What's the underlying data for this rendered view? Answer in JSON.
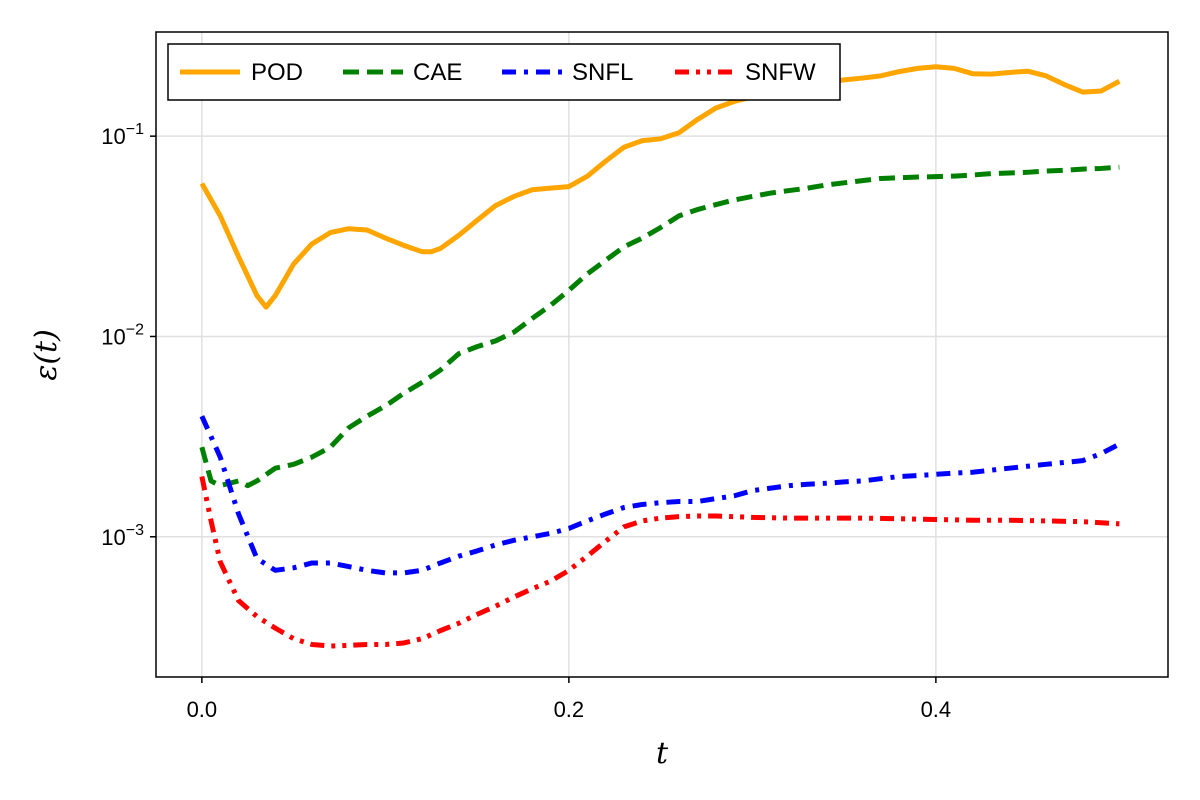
{
  "chart_data": {
    "type": "line",
    "xlabel": "t",
    "ylabel": "ε(t)",
    "yscale": "log",
    "xlim": [
      -0.025,
      0.5265
    ],
    "ylim_log10": [
      -3.7,
      -0.48
    ],
    "xticks": [
      {
        "value": 0.0,
        "label": "0.0"
      },
      {
        "value": 0.2,
        "label": "0.2"
      },
      {
        "value": 0.4,
        "label": "0.4"
      }
    ],
    "yticks": [
      {
        "value": 0.001,
        "base": "10",
        "exp": "−3"
      },
      {
        "value": 0.01,
        "base": "10",
        "exp": "−2"
      },
      {
        "value": 0.1,
        "base": "10",
        "exp": "−1"
      }
    ],
    "grid": true,
    "legend_position": "top-left",
    "series": [
      {
        "name": "POD",
        "color": "#ffa500",
        "dash": "solid",
        "x": [
          0,
          0.01,
          0.02,
          0.03,
          0.035,
          0.04,
          0.05,
          0.06,
          0.07,
          0.08,
          0.09,
          0.1,
          0.11,
          0.12,
          0.125,
          0.13,
          0.14,
          0.15,
          0.16,
          0.17,
          0.18,
          0.19,
          0.2,
          0.21,
          0.22,
          0.23,
          0.24,
          0.25,
          0.26,
          0.27,
          0.28,
          0.29,
          0.3,
          0.31,
          0.32,
          0.33,
          0.34,
          0.35,
          0.36,
          0.37,
          0.38,
          0.39,
          0.4,
          0.41,
          0.42,
          0.43,
          0.44,
          0.45,
          0.46,
          0.47,
          0.48,
          0.49,
          0.5
        ],
        "y": [
          0.058,
          0.04,
          0.025,
          0.016,
          0.014,
          0.016,
          0.023,
          0.029,
          0.033,
          0.0345,
          0.034,
          0.031,
          0.0285,
          0.0265,
          0.0265,
          0.0275,
          0.032,
          0.038,
          0.045,
          0.05,
          0.054,
          0.055,
          0.056,
          0.063,
          0.075,
          0.088,
          0.095,
          0.097,
          0.104,
          0.121,
          0.138,
          0.149,
          0.157,
          0.163,
          0.172,
          0.18,
          0.186,
          0.191,
          0.195,
          0.2,
          0.21,
          0.218,
          0.222,
          0.218,
          0.205,
          0.204,
          0.208,
          0.211,
          0.2,
          0.181,
          0.166,
          0.168,
          0.188
        ]
      },
      {
        "name": "CAE",
        "color": "#008000",
        "dash": "dashed",
        "x": [
          0,
          0.005,
          0.01,
          0.02,
          0.025,
          0.03,
          0.04,
          0.05,
          0.06,
          0.07,
          0.08,
          0.09,
          0.1,
          0.11,
          0.12,
          0.13,
          0.14,
          0.15,
          0.16,
          0.17,
          0.18,
          0.19,
          0.2,
          0.21,
          0.22,
          0.23,
          0.24,
          0.25,
          0.26,
          0.27,
          0.28,
          0.29,
          0.3,
          0.31,
          0.32,
          0.33,
          0.34,
          0.35,
          0.36,
          0.37,
          0.38,
          0.39,
          0.4,
          0.41,
          0.42,
          0.43,
          0.44,
          0.45,
          0.46,
          0.47,
          0.48,
          0.49,
          0.5
        ],
        "y": [
          0.0028,
          0.0019,
          0.0018,
          0.0019,
          0.0018,
          0.0019,
          0.0022,
          0.0023,
          0.0025,
          0.0028,
          0.0035,
          0.004,
          0.0045,
          0.0052,
          0.0059,
          0.0068,
          0.0082,
          0.0089,
          0.0095,
          0.0105,
          0.0123,
          0.0143,
          0.017,
          0.0205,
          0.024,
          0.028,
          0.031,
          0.035,
          0.04,
          0.043,
          0.0455,
          0.048,
          0.05,
          0.052,
          0.0535,
          0.055,
          0.057,
          0.0585,
          0.06,
          0.0615,
          0.062,
          0.0625,
          0.0628,
          0.0632,
          0.064,
          0.065,
          0.0655,
          0.066,
          0.067,
          0.0675,
          0.0685,
          0.069,
          0.07
        ]
      },
      {
        "name": "SNFL",
        "color": "#0000ff",
        "dash": "dashdot",
        "x": [
          0,
          0.01,
          0.02,
          0.03,
          0.04,
          0.05,
          0.06,
          0.07,
          0.08,
          0.09,
          0.1,
          0.11,
          0.12,
          0.13,
          0.14,
          0.15,
          0.16,
          0.17,
          0.18,
          0.19,
          0.2,
          0.21,
          0.22,
          0.23,
          0.24,
          0.25,
          0.26,
          0.27,
          0.28,
          0.29,
          0.3,
          0.31,
          0.32,
          0.33,
          0.34,
          0.35,
          0.36,
          0.37,
          0.38,
          0.39,
          0.4,
          0.41,
          0.42,
          0.43,
          0.44,
          0.45,
          0.46,
          0.47,
          0.48,
          0.49,
          0.5
        ],
        "y": [
          0.004,
          0.0025,
          0.0013,
          0.00078,
          0.00068,
          0.0007,
          0.00074,
          0.00074,
          0.00071,
          0.00068,
          0.00066,
          0.00066,
          0.00068,
          0.00074,
          0.0008,
          0.00085,
          0.00091,
          0.00096,
          0.001,
          0.00104,
          0.0011,
          0.0012,
          0.0013,
          0.0014,
          0.00145,
          0.00148,
          0.0015,
          0.0015,
          0.00155,
          0.0016,
          0.0017,
          0.00175,
          0.0018,
          0.00183,
          0.00185,
          0.00188,
          0.0019,
          0.00195,
          0.002,
          0.00202,
          0.00205,
          0.00208,
          0.0021,
          0.00215,
          0.0022,
          0.00225,
          0.0023,
          0.00235,
          0.0024,
          0.0026,
          0.0029
        ]
      },
      {
        "name": "SNFW",
        "color": "#ff0000",
        "dash": "dashdotdot",
        "x": [
          0,
          0.005,
          0.01,
          0.02,
          0.03,
          0.04,
          0.05,
          0.06,
          0.07,
          0.08,
          0.09,
          0.1,
          0.11,
          0.12,
          0.13,
          0.14,
          0.15,
          0.16,
          0.17,
          0.18,
          0.19,
          0.2,
          0.21,
          0.22,
          0.23,
          0.24,
          0.25,
          0.26,
          0.27,
          0.28,
          0.29,
          0.3,
          0.32,
          0.34,
          0.36,
          0.38,
          0.4,
          0.42,
          0.44,
          0.46,
          0.48,
          0.5
        ],
        "y": [
          0.002,
          0.0012,
          0.00075,
          0.00048,
          0.0004,
          0.00035,
          0.00031,
          0.00029,
          0.000285,
          0.000287,
          0.00029,
          0.00029,
          0.000295,
          0.00031,
          0.00034,
          0.00037,
          0.00041,
          0.00045,
          0.0005,
          0.00055,
          0.0006,
          0.00068,
          0.0008,
          0.00095,
          0.00112,
          0.0012,
          0.00124,
          0.00126,
          0.00127,
          0.00127,
          0.00126,
          0.00125,
          0.00124,
          0.00124,
          0.00124,
          0.00123,
          0.00122,
          0.00121,
          0.00121,
          0.0012,
          0.00119,
          0.00116
        ]
      }
    ]
  }
}
